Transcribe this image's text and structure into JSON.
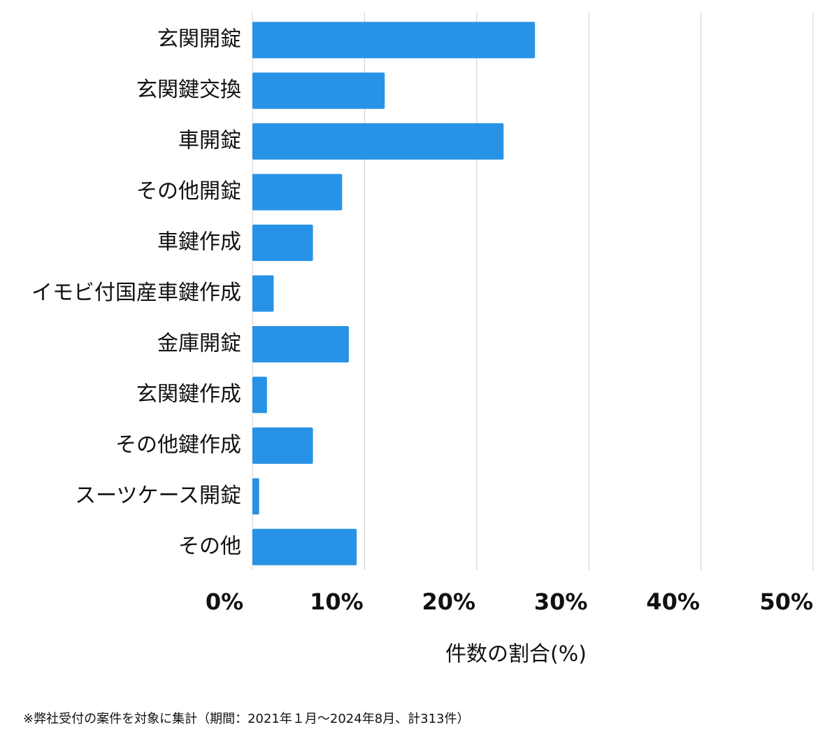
{
  "chart_data": {
    "type": "bar",
    "orientation": "horizontal",
    "categories": [
      "玄関開錠",
      "玄関鍵交換",
      "車開錠",
      "その他開錠",
      "車鍵作成",
      "イモビ付国産車鍵作成",
      "金庫開錠",
      "玄関鍵作成",
      "その他鍵作成",
      "スーツケース開錠",
      "その他"
    ],
    "values": [
      25.2,
      11.8,
      22.4,
      8.0,
      5.4,
      1.9,
      8.6,
      1.3,
      5.4,
      0.6,
      9.3
    ],
    "color": "#2893e6",
    "xlim": [
      0,
      50
    ],
    "xticks": [
      {
        "value": 0,
        "label": "0%"
      },
      {
        "value": 10,
        "label": "10%"
      },
      {
        "value": 20,
        "label": "20%"
      },
      {
        "value": 30,
        "label": "30%"
      },
      {
        "value": 40,
        "label": "40%"
      },
      {
        "value": 50,
        "label": "50%"
      }
    ],
    "grid": true,
    "x_label": "件数の割合(%)",
    "footnote": "※弊社受付の案件を対象に集計（期間：2021年１月〜2024年8月、計313件）"
  }
}
